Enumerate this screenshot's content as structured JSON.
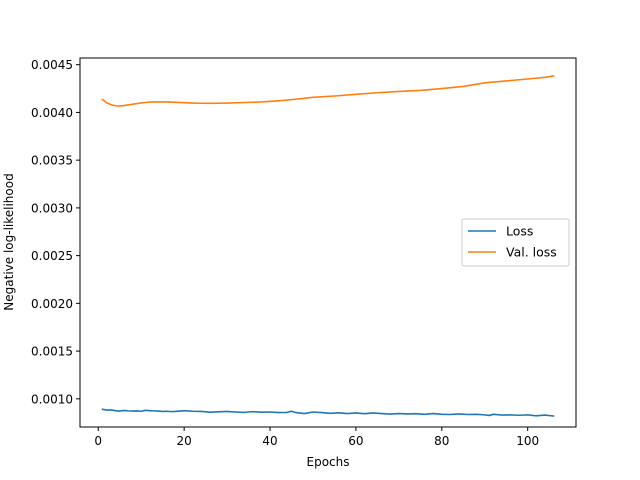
{
  "chart_data": {
    "type": "line",
    "title": "",
    "xlabel": "Epochs",
    "ylabel": "Negative log-likelihood",
    "xlim": [
      -4.25,
      111.25
    ],
    "ylim": [
      0.000705,
      0.00457
    ],
    "xticks": [
      0,
      20,
      40,
      60,
      80,
      100
    ],
    "xtick_labels": [
      "0",
      "20",
      "40",
      "60",
      "80",
      "100"
    ],
    "yticks": [
      0.001,
      0.0015,
      0.002,
      0.0025,
      0.003,
      0.0035,
      0.004,
      0.0045
    ],
    "ytick_labels": [
      "0.0010",
      "0.0015",
      "0.0020",
      "0.0025",
      "0.0030",
      "0.0035",
      "0.0040",
      "0.0045"
    ],
    "grid": false,
    "legend_position": "center-right",
    "series": [
      {
        "name": "Loss",
        "color": "#1f77b4",
        "x": [
          1,
          2,
          3,
          4,
          5,
          6,
          7,
          8,
          9,
          10,
          11,
          12,
          13,
          14,
          15,
          16,
          17,
          18,
          19,
          20,
          22,
          24,
          26,
          28,
          30,
          32,
          34,
          36,
          38,
          40,
          42,
          44,
          45,
          46,
          48,
          50,
          52,
          54,
          56,
          58,
          60,
          62,
          64,
          66,
          68,
          70,
          72,
          74,
          76,
          78,
          80,
          82,
          84,
          86,
          88,
          90,
          91,
          92,
          94,
          96,
          98,
          100,
          102,
          104,
          106
        ],
        "y": [
          0.00089,
          0.000882,
          0.000884,
          0.000876,
          0.000872,
          0.000878,
          0.000874,
          0.000872,
          0.000873,
          0.00087,
          0.00088,
          0.000876,
          0.000874,
          0.000872,
          0.000868,
          0.00087,
          0.000866,
          0.000868,
          0.000872,
          0.000876,
          0.00087,
          0.000868,
          0.00086,
          0.000864,
          0.000868,
          0.000862,
          0.000858,
          0.000866,
          0.00086,
          0.000862,
          0.000856,
          0.000858,
          0.00087,
          0.000856,
          0.000846,
          0.000862,
          0.000856,
          0.000848,
          0.000854,
          0.000846,
          0.000852,
          0.000844,
          0.000852,
          0.000846,
          0.00084,
          0.000846,
          0.000842,
          0.000844,
          0.000838,
          0.000846,
          0.000838,
          0.000836,
          0.000842,
          0.000836,
          0.000838,
          0.000832,
          0.000826,
          0.000838,
          0.00083,
          0.000832,
          0.000828,
          0.000832,
          0.000822,
          0.00083,
          0.00082
        ]
      },
      {
        "name": "Val. loss",
        "color": "#ff7f0e",
        "x": [
          1,
          2,
          3,
          4,
          5,
          6,
          8,
          10,
          12,
          14,
          16,
          18,
          20,
          22,
          24,
          26,
          28,
          30,
          34,
          38,
          42,
          46,
          50,
          55,
          60,
          65,
          70,
          75,
          80,
          85,
          90,
          95,
          100,
          104,
          106
        ],
        "y": [
          0.004135,
          0.0041,
          0.00408,
          0.00407,
          0.004068,
          0.004072,
          0.004085,
          0.0041,
          0.004108,
          0.00411,
          0.00411,
          0.004106,
          0.004102,
          0.004098,
          0.004096,
          0.004095,
          0.004096,
          0.004098,
          0.004104,
          0.00411,
          0.004122,
          0.004138,
          0.004158,
          0.004172,
          0.00419,
          0.004206,
          0.00422,
          0.00423,
          0.00425,
          0.004272,
          0.00431,
          0.00433,
          0.00435,
          0.004368,
          0.004382
        ]
      }
    ]
  }
}
